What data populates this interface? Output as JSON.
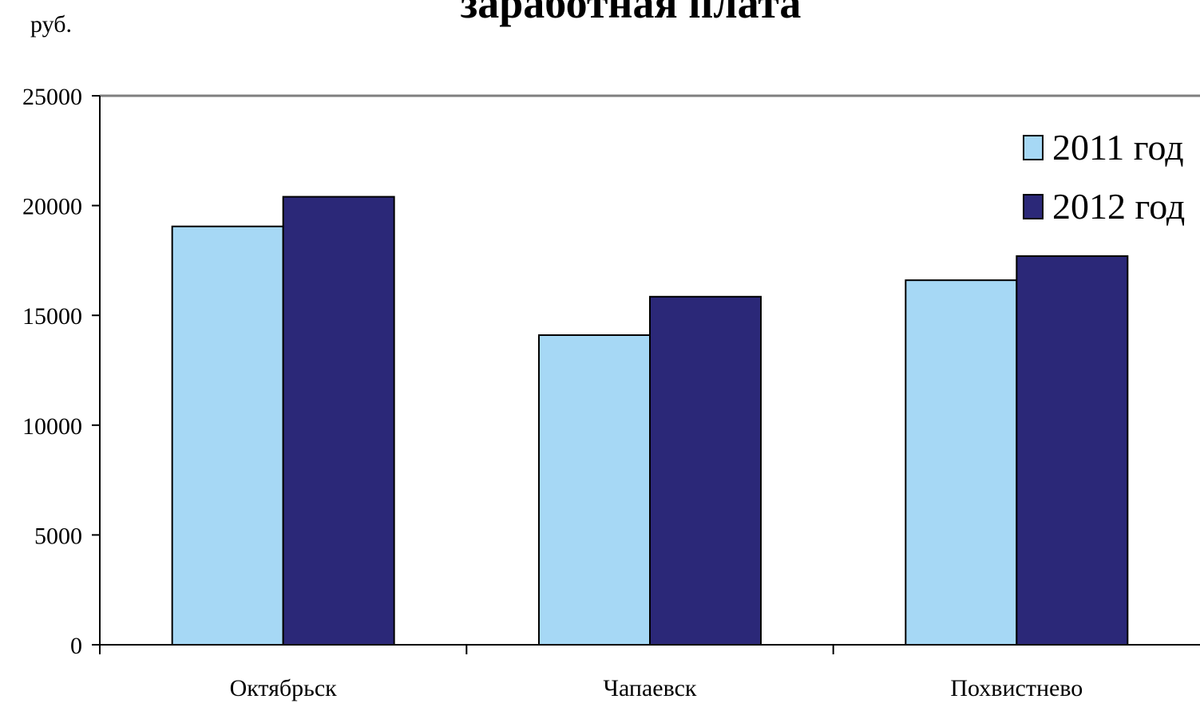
{
  "chart_data": {
    "type": "bar",
    "title": "заработная плата",
    "ylabel": "руб.",
    "xlabel": "",
    "categories": [
      "Октябрьск",
      "Чапаевск",
      "Похвистнево"
    ],
    "series": [
      {
        "name": "2011 год",
        "values": [
          19050,
          14100,
          16600
        ],
        "color": "#a6d8f5"
      },
      {
        "name": "2012 год",
        "values": [
          20400,
          15850,
          17700
        ],
        "color": "#2b2878"
      }
    ],
    "ylim": [
      0,
      25000
    ],
    "yticks": [
      0,
      5000,
      10000,
      15000,
      20000,
      25000
    ],
    "grid": false,
    "legend_position": "top-right"
  }
}
